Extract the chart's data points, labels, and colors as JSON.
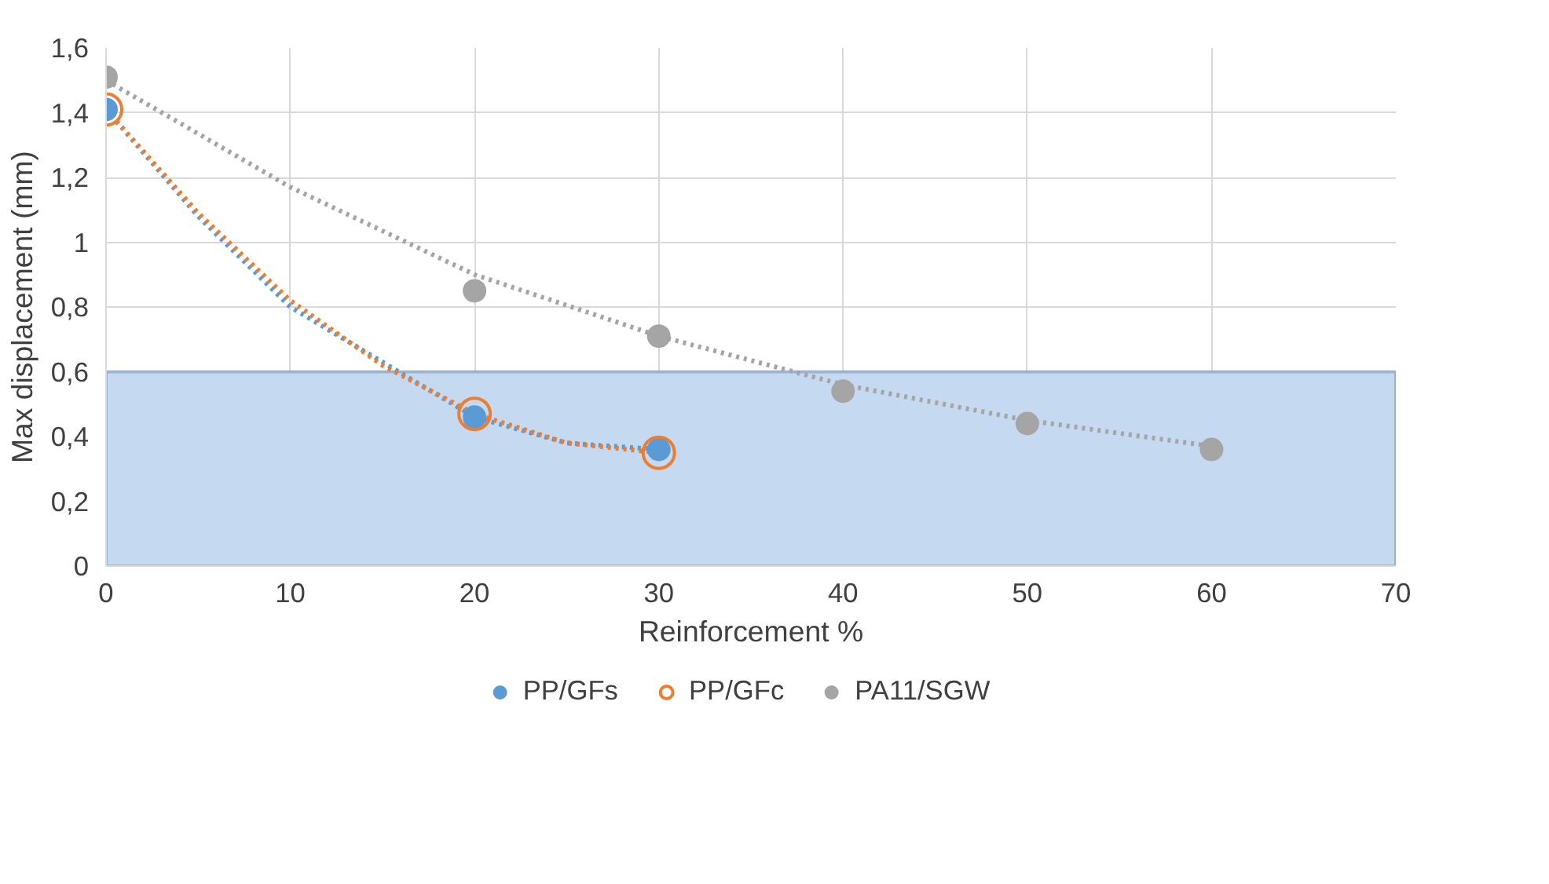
{
  "chart_data": {
    "type": "scatter",
    "xlabel": "Reinforcement %",
    "ylabel": "Max displacement (mm)",
    "xlim": [
      0,
      70
    ],
    "xticks": [
      0,
      10,
      20,
      30,
      40,
      50,
      60,
      70
    ],
    "ylim": [
      0,
      1.6
    ],
    "yticks": [
      0,
      {
        "value": 0.2,
        "label": "0,2"
      },
      {
        "value": 0.4,
        "label": "0,4"
      },
      {
        "value": 0.6,
        "label": "0,6"
      },
      {
        "value": 0.8,
        "label": "0,8"
      },
      1,
      {
        "value": 1.2,
        "label": "1,2"
      },
      {
        "value": 1.4,
        "label": "1,4"
      },
      {
        "value": 1.6,
        "label": "1,6"
      }
    ],
    "grid": true,
    "legend": "bottom",
    "marker": "circle",
    "bands": [
      {
        "axis": "y",
        "from": 0,
        "to": 0.6,
        "color": "#c5d9f0"
      }
    ],
    "series": [
      {
        "type": "line",
        "marker": "none",
        "line_style": "dotted",
        "color": "#5b9bd5",
        "x": [
          0,
          5,
          10,
          15,
          20,
          25,
          30
        ],
        "values": [
          1.41,
          1.08,
          0.8,
          0.63,
          0.46,
          0.38,
          0.36
        ]
      },
      {
        "type": "line",
        "marker": "none",
        "line_style": "dotted",
        "color": "#ed7d31",
        "x": [
          0,
          5,
          10,
          15,
          20,
          25,
          30
        ],
        "values": [
          1.41,
          1.09,
          0.82,
          0.62,
          0.47,
          0.38,
          0.35
        ]
      },
      {
        "type": "line",
        "marker": "none",
        "line_style": "dotted",
        "color": "#a5a5a5",
        "x": [
          0,
          10,
          20,
          30,
          40,
          50,
          60
        ],
        "values": [
          1.5,
          1.17,
          0.9,
          0.71,
          0.56,
          0.45,
          0.37
        ]
      },
      {
        "name": "PP/GFs",
        "color": "#5b9bd5",
        "x": [
          0,
          20,
          30
        ],
        "values": [
          1.41,
          0.46,
          0.36
        ]
      },
      {
        "name": "PP/GFc",
        "color": "#ed7d31",
        "marker": "circle_open",
        "x": [
          0,
          20,
          30
        ],
        "values": [
          1.41,
          0.47,
          0.35
        ]
      },
      {
        "name": "PA11/SGW",
        "color": "#a5a5a5",
        "x": [
          0,
          20,
          30,
          40,
          50,
          60
        ],
        "values": [
          1.51,
          0.85,
          0.71,
          0.54,
          0.44,
          0.36
        ]
      }
    ]
  }
}
